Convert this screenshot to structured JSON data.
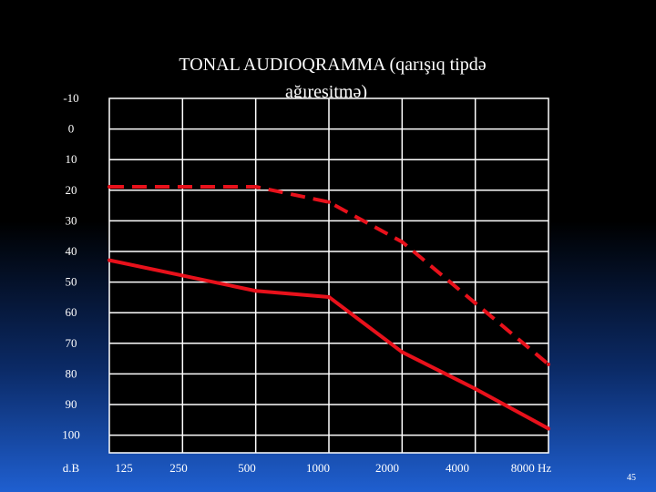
{
  "slide": {
    "number": "45"
  },
  "chart_data": {
    "type": "line",
    "title": "TONAL AUDIOQRAMMA (qarışıq tipdə ağıreşitmə)",
    "title_lines": [
      "TONAL AUDIOQRAMMA (qarışıq tipdə",
      "ağıreşitmə)"
    ],
    "ylabel": "d.B",
    "xlabel": "Hz",
    "categories": [
      "125",
      "250",
      "500",
      "1000",
      "2000",
      "4000",
      "8000"
    ],
    "x_tick_labels": [
      "125",
      "250",
      "500",
      "1000",
      "2000",
      "4000",
      "8000 Hz"
    ],
    "y_ticks": [
      -10,
      0,
      10,
      20,
      30,
      40,
      50,
      60,
      70,
      80,
      90,
      100
    ],
    "ylim": [
      -10,
      100
    ],
    "y_inverted": true,
    "grid": true,
    "colors": {
      "series": "#e8111b",
      "grid": "#ffffff",
      "plot_bg": "#000000"
    },
    "series": [
      {
        "style": "dashed",
        "values": [
          15,
          15,
          15,
          20,
          33,
          53,
          73
        ]
      },
      {
        "style": "solid",
        "values": [
          39,
          44,
          49,
          51,
          69,
          81,
          94
        ]
      }
    ]
  }
}
